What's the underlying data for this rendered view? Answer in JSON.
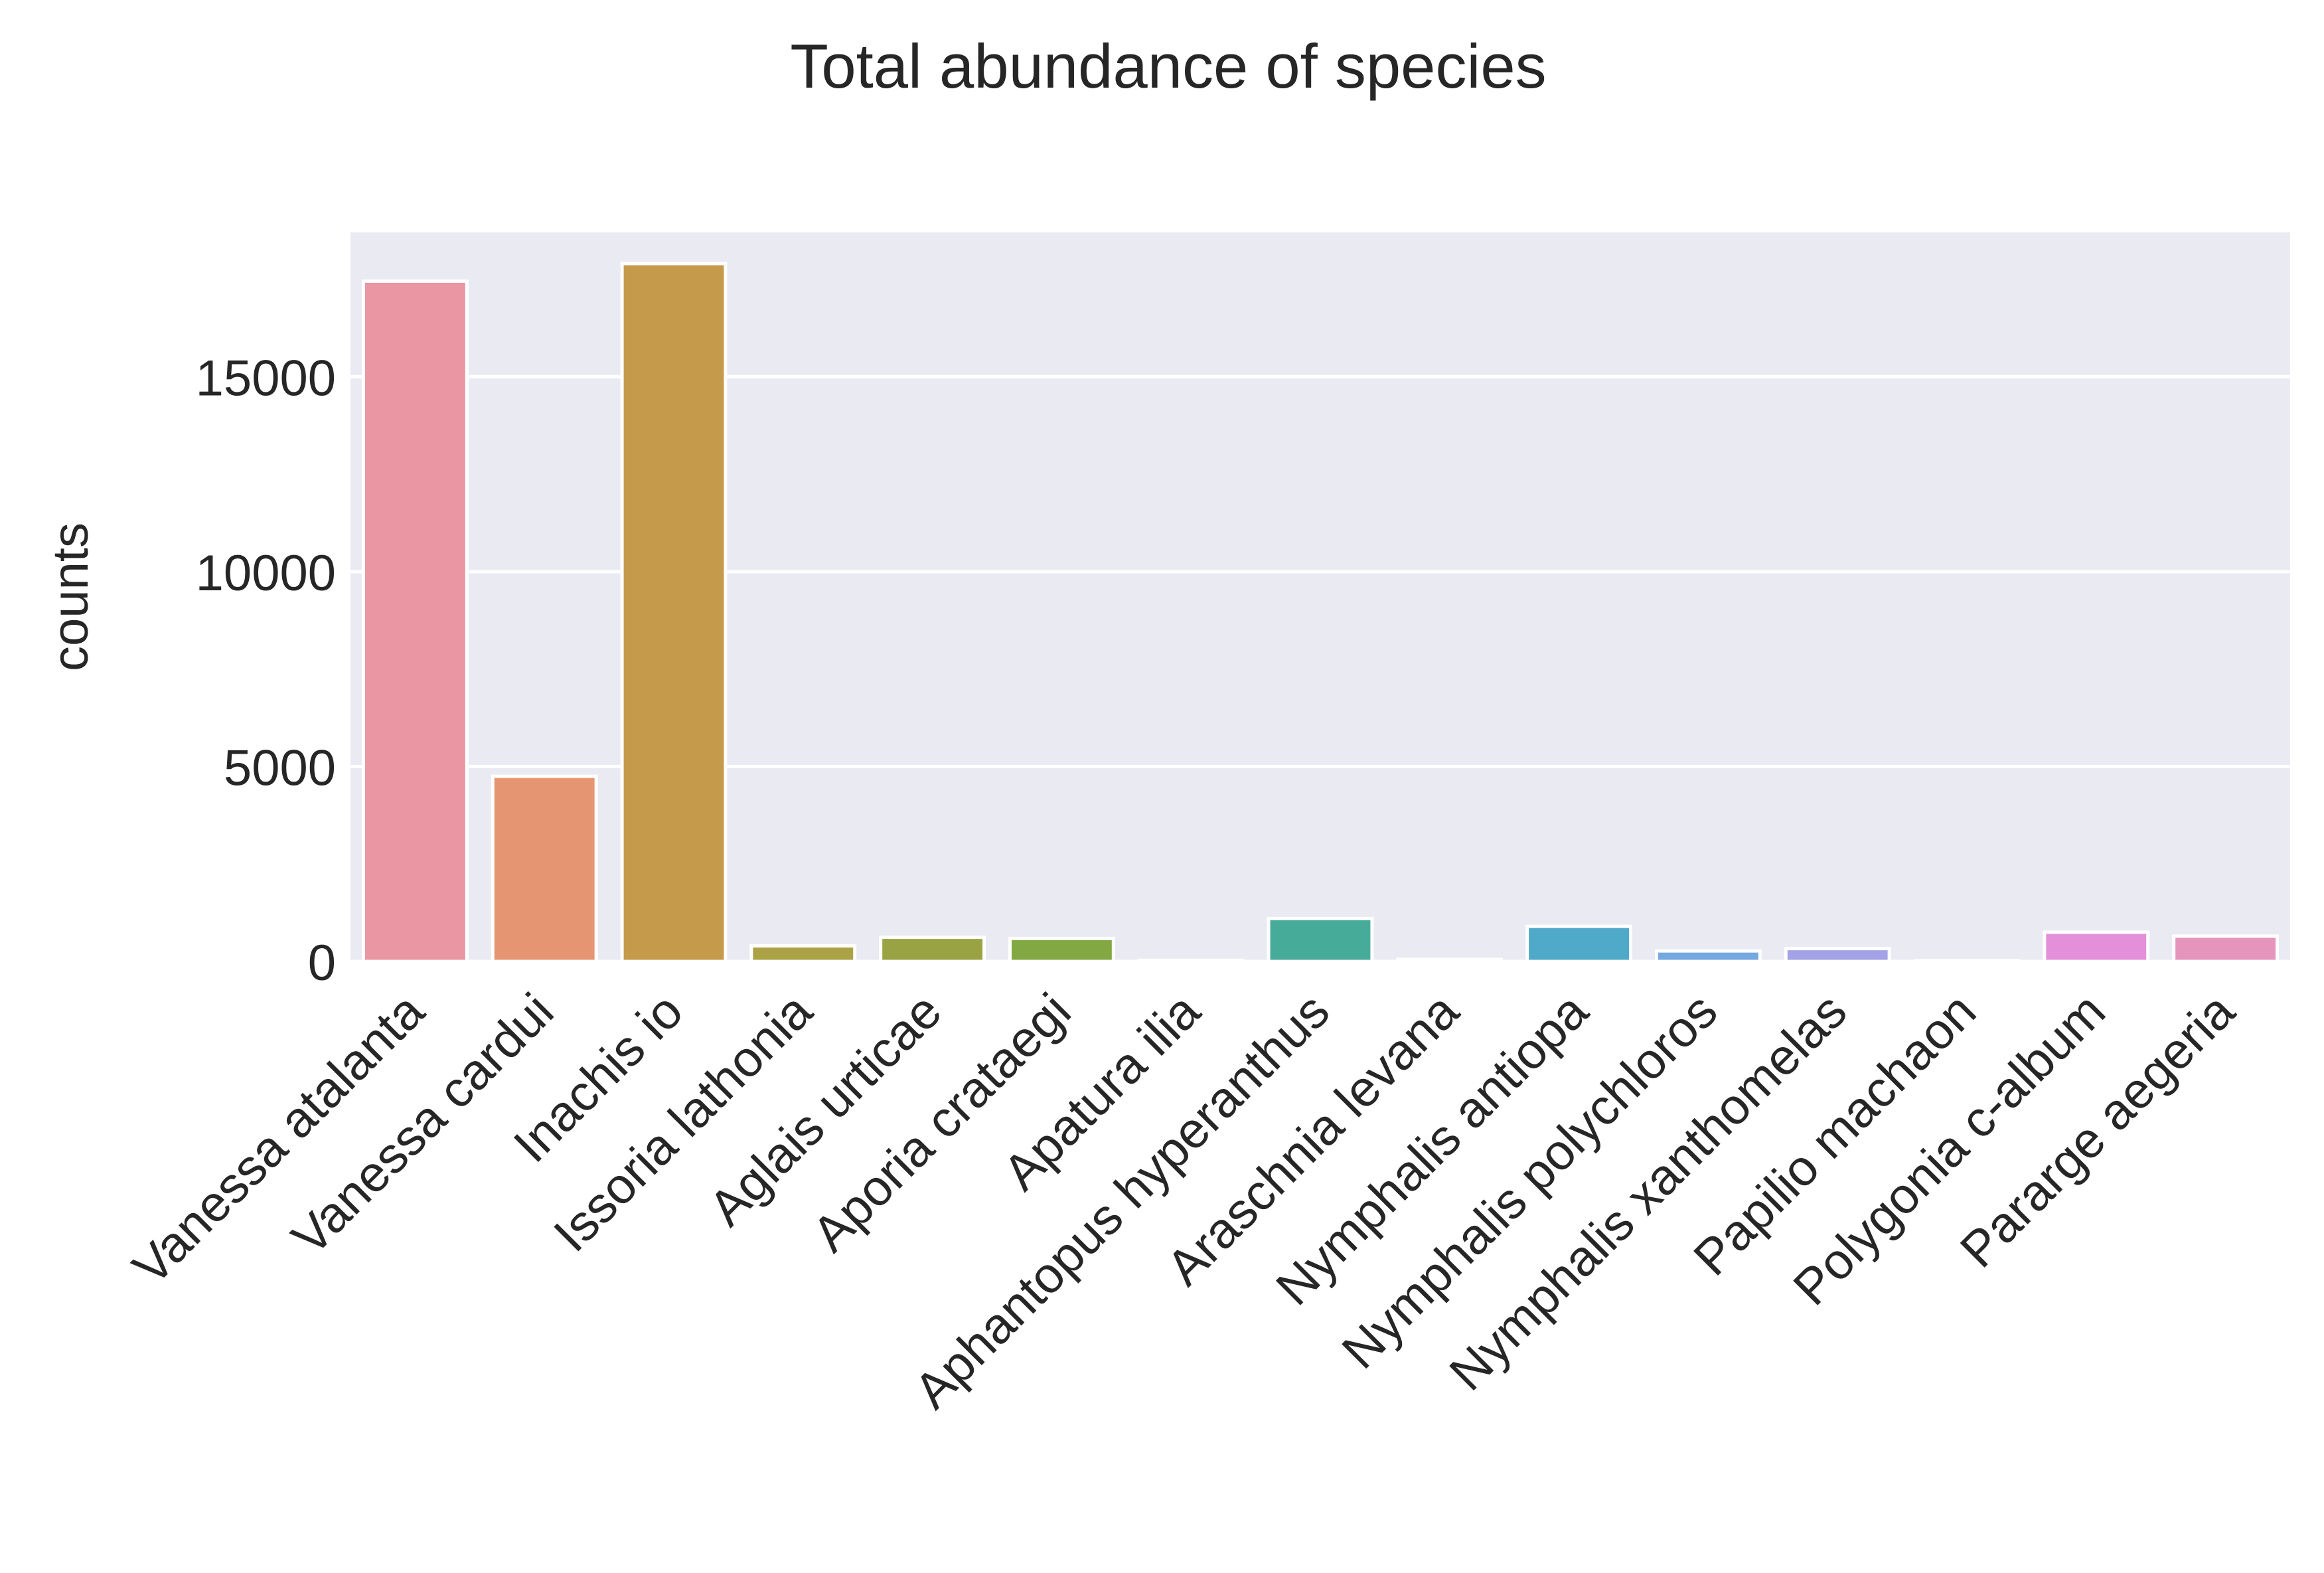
{
  "chart_data": {
    "type": "bar",
    "title": "Total abundance of species",
    "xlabel": "",
    "ylabel": "counts",
    "ylim": [
      0,
      18700
    ],
    "yticks": [
      0,
      5000,
      10000,
      15000
    ],
    "grid": true,
    "categories": [
      "Vanessa atalanta",
      "Vanessa cardui",
      "Inachis io",
      "Issoria lathonia",
      "Aglais urticae",
      "Aporia crataegi",
      "Apatura ilia",
      "Aphantopus hyperanthus",
      "Araschnia levana",
      "Nymphalis antiopa",
      "Nymphalis polychloros",
      "Nymphalis xanthomelas",
      "Papilio machaon",
      "Polygonia c-album",
      "Pararge aegeria"
    ],
    "values": [
      17450,
      4750,
      17900,
      400,
      620,
      590,
      30,
      1100,
      50,
      900,
      270,
      330,
      20,
      750,
      650
    ],
    "colors": [
      "#ea96a3",
      "#e69572",
      "#c69a4b",
      "#aba145",
      "#99a344",
      "#82a843",
      "#42ad6d",
      "#47ab99",
      "#4aaaad",
      "#4fa9c8",
      "#76a8e0",
      "#a3a2e6",
      "#cc98e6",
      "#e38fd9",
      "#e594bc"
    ],
    "colors_meaning": "bar fill per category (seaborn husl palette)",
    "plot_background": "#eaeaf2",
    "grid_color": "#ffffff"
  }
}
